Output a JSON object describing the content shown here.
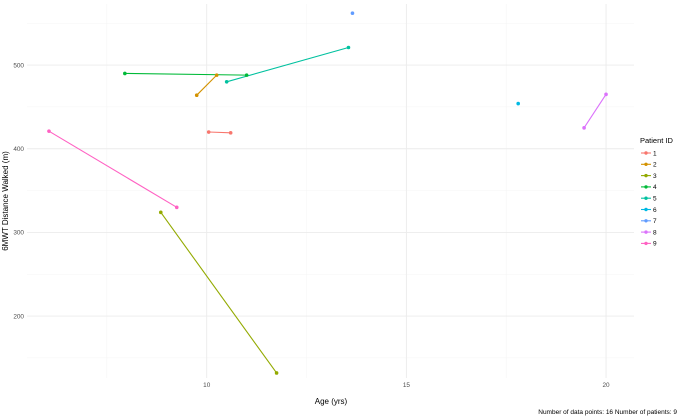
{
  "chart_data": {
    "type": "line",
    "title": "",
    "xlabel": "Age (yrs)",
    "ylabel": "6MWT Distance Walked (m)",
    "xlim": [
      5.5,
      20.7
    ],
    "ylim": [
      126,
      573
    ],
    "x_ticks": [
      10,
      15,
      20
    ],
    "y_ticks": [
      200,
      300,
      400,
      500
    ],
    "x_tick_labels": [
      "10",
      "15",
      "20"
    ],
    "y_tick_labels": [
      "200",
      "300",
      "400",
      "500"
    ],
    "grid": true,
    "legend": {
      "title": "Patient ID",
      "position": "right"
    },
    "series": [
      {
        "name": "1",
        "color": "#F8766D",
        "points": [
          [
            10.05,
            420
          ],
          [
            10.6,
            419
          ]
        ]
      },
      {
        "name": "2",
        "color": "#D39200",
        "points": [
          [
            9.75,
            464
          ],
          [
            10.25,
            488
          ]
        ]
      },
      {
        "name": "3",
        "color": "#93AA00",
        "points": [
          [
            8.85,
            324
          ],
          [
            11.75,
            132
          ]
        ]
      },
      {
        "name": "4",
        "color": "#00BA38",
        "points": [
          [
            7.95,
            490
          ],
          [
            11.0,
            488
          ]
        ]
      },
      {
        "name": "5",
        "color": "#00C19F",
        "points": [
          [
            10.5,
            480
          ],
          [
            13.55,
            521
          ]
        ]
      },
      {
        "name": "6",
        "color": "#00B9E3",
        "points": [
          [
            17.8,
            454
          ]
        ]
      },
      {
        "name": "7",
        "color": "#619CFF",
        "points": [
          [
            13.65,
            562
          ]
        ]
      },
      {
        "name": "8",
        "color": "#DB72FB",
        "points": [
          [
            19.45,
            425
          ],
          [
            20.0,
            465
          ]
        ]
      },
      {
        "name": "9",
        "color": "#FF61C3",
        "points": [
          [
            6.05,
            421
          ],
          [
            9.25,
            330
          ]
        ]
      }
    ]
  },
  "footnote": "Number of data points: 16 Number of patients: 9"
}
